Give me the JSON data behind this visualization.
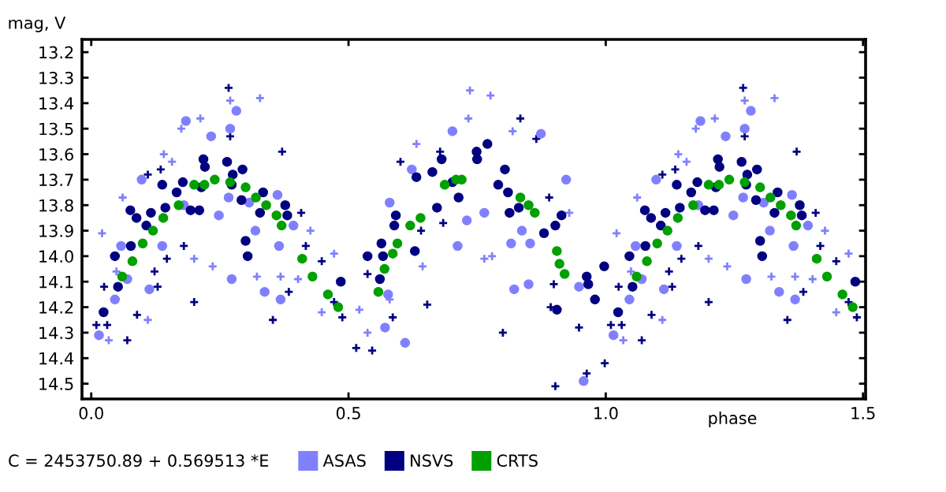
{
  "chart_data": {
    "type": "scatter",
    "xlabel": "phase",
    "ylabel": "mag, V",
    "annotations": [
      "C = 2453750.89 + 0.569513 *E"
    ],
    "xlim": [
      -0.018,
      1.505
    ],
    "ylim": [
      14.56,
      13.15
    ],
    "xticks": [
      {
        "value": 0,
        "label": "0.0"
      },
      {
        "value": 0.5,
        "label": "0.5"
      },
      {
        "value": 1,
        "label": "1.0"
      },
      {
        "value": 1.5,
        "label": "1.5"
      }
    ],
    "yticks": [
      13.2,
      13.3,
      13.4,
      13.5,
      13.6,
      13.7,
      13.8,
      13.9,
      {
        "value": 14,
        "label": "14.0"
      },
      14.1,
      14.2,
      14.3,
      14.4,
      14.5
    ],
    "grid": false,
    "legend": "bottom",
    "series": [
      {
        "color": "#000080",
        "marker": "cross",
        "x": [
          0.01,
          0.025,
          0.031,
          0.07,
          0.089,
          0.11,
          0.123,
          0.129,
          0.135,
          0.147,
          0.18,
          0.2,
          0.267,
          0.27,
          0.353,
          0.371,
          0.384,
          0.408,
          0.417,
          0.448,
          0.472,
          0.488,
          0.515,
          0.537,
          0.546,
          0.586,
          0.601,
          0.641,
          0.653,
          0.678,
          0.684,
          0.8,
          0.834,
          0.865,
          0.89,
          0.893,
          0.899,
          0.902,
          0.948,
          0.963,
          0.998,
          1.01,
          1.025,
          1.031,
          1.07,
          1.089,
          1.11,
          1.123,
          1.129,
          1.135,
          1.147,
          1.18,
          1.2,
          1.267,
          1.27,
          1.353,
          1.371,
          1.384,
          1.408,
          1.417,
          1.448,
          1.472,
          1.488
        ],
        "values": [
          14.27,
          14.12,
          14.27,
          14.33,
          14.23,
          13.68,
          14.06,
          14.12,
          13.66,
          14.01,
          13.96,
          14.18,
          13.34,
          13.53,
          14.25,
          13.59,
          14.14,
          13.83,
          13.96,
          14.02,
          14.18,
          14.24,
          14.36,
          14.07,
          14.37,
          14.24,
          13.63,
          13.9,
          14.19,
          13.59,
          13.87,
          14.3,
          13.46,
          13.54,
          13.77,
          14.2,
          14.11,
          14.51,
          14.28,
          14.46,
          14.42,
          14.27,
          14.12,
          14.27,
          14.33,
          14.23,
          13.68,
          14.06,
          14.12,
          13.66,
          14.01,
          13.96,
          14.18,
          13.34,
          13.53,
          14.25,
          13.59,
          14.14,
          13.83,
          13.96,
          14.02,
          14.18,
          14.24
        ]
      },
      {
        "color": "#8080ff",
        "marker": "cross",
        "x": [
          0.021,
          0.034,
          0.049,
          0.061,
          0.11,
          0.141,
          0.157,
          0.175,
          0.2,
          0.212,
          0.236,
          0.27,
          0.322,
          0.328,
          0.368,
          0.402,
          0.426,
          0.448,
          0.472,
          0.521,
          0.537,
          0.58,
          0.632,
          0.644,
          0.733,
          0.736,
          0.764,
          0.776,
          0.779,
          0.819,
          0.929,
          1.021,
          1.034,
          1.049,
          1.061,
          1.11,
          1.141,
          1.157,
          1.175,
          1.2,
          1.212,
          1.236,
          1.27,
          1.322,
          1.328,
          1.368,
          1.402,
          1.426,
          1.448,
          1.472
        ],
        "values": [
          13.91,
          14.33,
          14.06,
          13.77,
          14.25,
          13.6,
          13.63,
          13.5,
          14.01,
          13.46,
          14.04,
          13.39,
          14.08,
          13.38,
          14.08,
          14.09,
          13.9,
          14.22,
          13.99,
          14.21,
          14.3,
          14.17,
          13.56,
          14.04,
          13.46,
          13.35,
          14.01,
          13.37,
          14.0,
          13.51,
          13.83,
          13.91,
          14.33,
          14.06,
          13.77,
          14.25,
          13.6,
          13.63,
          13.5,
          14.01,
          13.46,
          14.04,
          13.39,
          14.08,
          13.38,
          14.08,
          14.09,
          13.9,
          14.22,
          13.99
        ]
      },
      {
        "name": "ASAS",
        "color": "#8080ff",
        "marker": "circle",
        "x": [
          0.015,
          0.046,
          0.058,
          0.07,
          0.098,
          0.113,
          0.138,
          0.18,
          0.184,
          0.233,
          0.248,
          0.267,
          0.27,
          0.273,
          0.282,
          0.307,
          0.319,
          0.337,
          0.362,
          0.365,
          0.368,
          0.393,
          0.571,
          0.577,
          0.58,
          0.61,
          0.623,
          0.702,
          0.712,
          0.73,
          0.764,
          0.816,
          0.822,
          0.837,
          0.85,
          0.853,
          0.874,
          0.923,
          0.948,
          0.957,
          1.015,
          1.046,
          1.058,
          1.07,
          1.098,
          1.113,
          1.138,
          1.18,
          1.184,
          1.233,
          1.248,
          1.267,
          1.27,
          1.273,
          1.282,
          1.307,
          1.319,
          1.337,
          1.362,
          1.365,
          1.368,
          1.393
        ],
        "values": [
          14.31,
          14.17,
          13.96,
          14.09,
          13.7,
          14.13,
          13.96,
          13.8,
          13.47,
          13.53,
          13.84,
          13.77,
          13.5,
          14.09,
          13.43,
          13.79,
          13.9,
          14.14,
          13.76,
          13.96,
          14.17,
          13.88,
          14.28,
          14.15,
          13.79,
          14.34,
          13.66,
          13.51,
          13.96,
          13.86,
          13.83,
          13.95,
          14.13,
          13.9,
          14.11,
          13.95,
          13.52,
          13.7,
          14.12,
          14.49,
          14.31,
          14.17,
          13.96,
          14.09,
          13.7,
          14.13,
          13.96,
          13.8,
          13.47,
          13.53,
          13.84,
          13.77,
          13.5,
          14.09,
          13.43,
          13.79,
          13.9,
          14.14,
          13.76,
          13.96,
          14.17,
          13.88
        ]
      },
      {
        "name": "NSVS",
        "color": "#000080",
        "marker": "circle",
        "x": [
          0.024,
          0.046,
          0.052,
          0.077,
          0.076,
          0.088,
          0.107,
          0.116,
          0.138,
          0.144,
          0.166,
          0.178,
          0.193,
          0.21,
          0.214,
          0.218,
          0.221,
          0.264,
          0.273,
          0.275,
          0.292,
          0.294,
          0.3,
          0.304,
          0.328,
          0.334,
          0.377,
          0.381,
          0.485,
          0.537,
          0.561,
          0.564,
          0.567,
          0.589,
          0.592,
          0.629,
          0.632,
          0.663,
          0.672,
          0.681,
          0.702,
          0.714,
          0.749,
          0.75,
          0.77,
          0.791,
          0.804,
          0.81,
          0.813,
          0.831,
          0.88,
          0.902,
          0.905,
          0.914,
          0.963,
          0.966,
          0.979,
          0.997,
          1.024,
          1.046,
          1.052,
          1.077,
          1.076,
          1.088,
          1.107,
          1.116,
          1.138,
          1.144,
          1.166,
          1.178,
          1.193,
          1.21,
          1.214,
          1.218,
          1.221,
          1.264,
          1.273,
          1.275,
          1.292,
          1.294,
          1.3,
          1.304,
          1.328,
          1.334,
          1.377,
          1.381,
          1.485
        ],
        "values": [
          14.22,
          14.0,
          14.12,
          13.96,
          13.82,
          13.85,
          13.88,
          13.83,
          13.72,
          13.81,
          13.75,
          13.71,
          13.82,
          13.82,
          13.73,
          13.62,
          13.65,
          13.63,
          13.72,
          13.68,
          13.78,
          13.66,
          13.94,
          14.0,
          13.83,
          13.75,
          13.8,
          13.84,
          14.1,
          14.0,
          14.09,
          13.95,
          14.0,
          13.88,
          13.84,
          13.98,
          13.69,
          13.67,
          13.81,
          13.62,
          13.71,
          13.77,
          13.59,
          13.62,
          13.56,
          13.72,
          13.66,
          13.75,
          13.83,
          13.81,
          13.91,
          13.88,
          14.21,
          13.84,
          14.08,
          14.11,
          14.17,
          14.04,
          14.22,
          14.0,
          14.12,
          13.96,
          13.82,
          13.85,
          13.88,
          13.83,
          13.72,
          13.81,
          13.75,
          13.71,
          13.82,
          13.82,
          13.73,
          13.62,
          13.65,
          13.63,
          13.72,
          13.68,
          13.78,
          13.66,
          13.94,
          14.0,
          13.83,
          13.75,
          13.8,
          13.84,
          14.1
        ]
      },
      {
        "name": "CRTS",
        "color": "#00a000",
        "marker": "circle",
        "x": [
          0.06,
          0.08,
          0.1,
          0.12,
          0.14,
          0.17,
          0.2,
          0.22,
          0.24,
          0.27,
          0.3,
          0.32,
          0.34,
          0.36,
          0.37,
          0.41,
          0.43,
          0.46,
          0.48,
          0.558,
          0.57,
          0.586,
          0.595,
          0.62,
          0.64,
          0.687,
          0.709,
          0.72,
          0.834,
          0.85,
          0.862,
          0.905,
          0.91,
          0.92,
          1.06,
          1.08,
          1.1,
          1.12,
          1.14,
          1.17,
          1.2,
          1.22,
          1.24,
          1.27,
          1.3,
          1.32,
          1.34,
          1.36,
          1.37,
          1.41,
          1.43,
          1.46,
          1.48
        ],
        "values": [
          14.08,
          14.02,
          13.95,
          13.9,
          13.85,
          13.8,
          13.72,
          13.72,
          13.7,
          13.71,
          13.73,
          13.77,
          13.8,
          13.84,
          13.88,
          14.01,
          14.08,
          14.15,
          14.2,
          14.14,
          14.05,
          13.99,
          13.95,
          13.88,
          13.85,
          13.72,
          13.7,
          13.7,
          13.77,
          13.8,
          13.83,
          13.98,
          14.03,
          14.07,
          14.08,
          14.02,
          13.95,
          13.9,
          13.85,
          13.8,
          13.72,
          13.72,
          13.7,
          13.71,
          13.73,
          13.77,
          13.8,
          13.84,
          13.88,
          14.01,
          14.08,
          14.15,
          14.2
        ]
      }
    ]
  }
}
